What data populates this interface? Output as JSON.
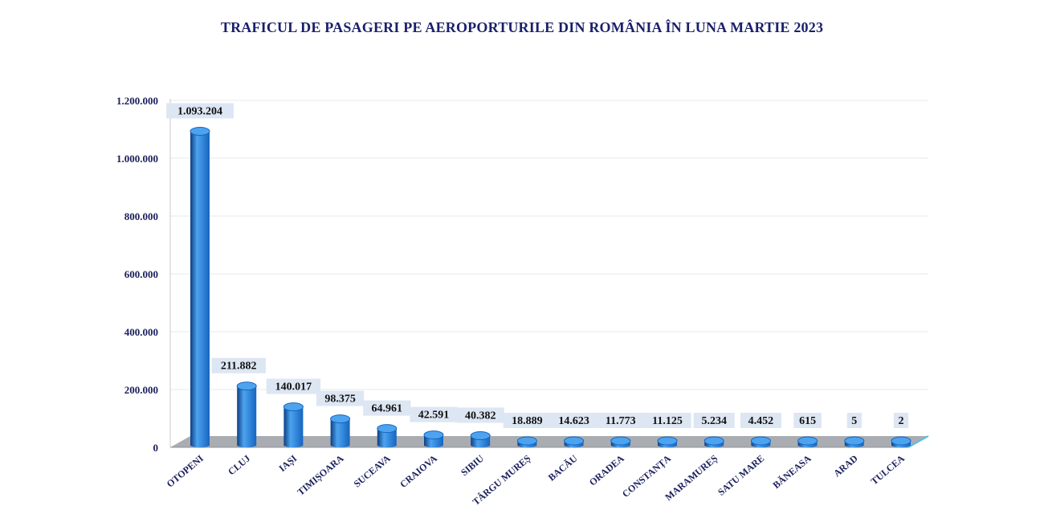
{
  "chart_data": {
    "type": "bar",
    "title": "TRAFICUL DE PASAGERI PE AEROPORTURILE DIN ROMÂNIA ÎN LUNA MARTIE 2023",
    "categories": [
      "OTOPENI",
      "CLUJ",
      "IAȘI",
      "TIMIȘOARA",
      "SUCEAVA",
      "CRAIOVA",
      "SIBIU",
      "TÂRGU MUREȘ",
      "BACĂU",
      "ORADEA",
      "CONSTANȚA",
      "MARAMUREȘ",
      "SATU MARE",
      "BĂNEASA",
      "ARAD",
      "TULCEA"
    ],
    "values": [
      1093204,
      211882,
      140017,
      98375,
      64961,
      42591,
      40382,
      18889,
      14623,
      11773,
      11125,
      5234,
      4452,
      615,
      5,
      2
    ],
    "data_labels": [
      "1.093.204",
      "211.882",
      "140.017",
      "98.375",
      "64.961",
      "42.591",
      "40.382",
      "18.889",
      "14.623",
      "11.773",
      "11.125",
      "5.234",
      "4.452",
      "615",
      "5",
      "2"
    ],
    "y_ticks": [
      0,
      200000,
      400000,
      600000,
      800000,
      1000000,
      1200000
    ],
    "y_tick_labels": [
      "0",
      "200.000",
      "400.000",
      "600.000",
      "800.000",
      "1.000.000",
      "1.200.000"
    ],
    "ylim": [
      0,
      1200000
    ],
    "xlabel": "",
    "ylabel": "",
    "grid": true,
    "colors": {
      "bar": "#1565c0",
      "bar_light": "#4da3ee",
      "bar_dark": "#0b3f85",
      "floor": "#a9adb2",
      "floor_edge": "#5bbde0",
      "label_box": "#dde6f3",
      "axis_text": "#1a1f5c",
      "title": "#1a1f6b"
    }
  }
}
